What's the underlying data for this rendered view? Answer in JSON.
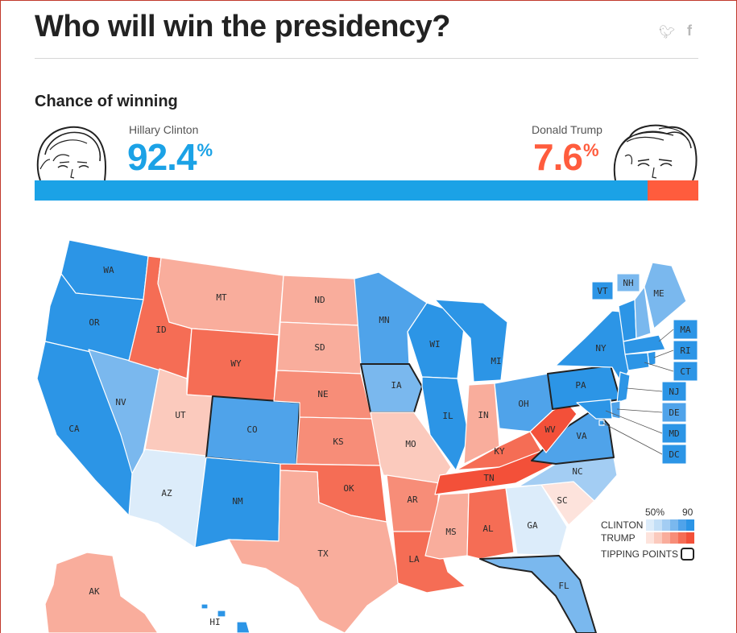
{
  "header": {
    "title": "Who will win the presidency?"
  },
  "share": {
    "twitter_icon": "twitter-icon",
    "facebook_icon": "facebook-icon"
  },
  "chance": {
    "heading": "Chance of winning",
    "clinton": {
      "name": "Hillary Clinton",
      "value": "92.4",
      "unit": "%",
      "color": "#1ba2e6"
    },
    "trump": {
      "name": "Donald Trump",
      "value": "7.6",
      "unit": "%",
      "color": "#ff5c3d"
    }
  },
  "chart_data": {
    "type": "bar",
    "categories": [
      "Hillary Clinton",
      "Donald Trump"
    ],
    "values": [
      92.4,
      7.6
    ],
    "unit": "%"
  },
  "legend": {
    "scale_low": "50%",
    "scale_high": "90",
    "clinton_label": "CLINTON",
    "trump_label": "TRUMP",
    "tipping_label": "TIPPING POINTS",
    "clinton_colors": [
      "#dcecfa",
      "#c3dff7",
      "#a3cdf3",
      "#7ab8ee",
      "#4fa3ea",
      "#2c95e6"
    ],
    "trump_colors": [
      "#fde3dc",
      "#fbcabd",
      "#f9ad9c",
      "#f78d78",
      "#f56d55",
      "#f35039"
    ]
  },
  "map": {
    "states": [
      "WA",
      "OR",
      "CA",
      "NV",
      "ID",
      "MT",
      "WY",
      "UT",
      "AZ",
      "CO",
      "NM",
      "ND",
      "SD",
      "NE",
      "KS",
      "OK",
      "TX",
      "MN",
      "IA",
      "MO",
      "AR",
      "LA",
      "WI",
      "IL",
      "MI",
      "IN",
      "OH",
      "KY",
      "TN",
      "MS",
      "AL",
      "GA",
      "FL",
      "SC",
      "NC",
      "VA",
      "WV",
      "PA",
      "NY",
      "VT",
      "NH",
      "ME",
      "MA",
      "RI",
      "CT",
      "NJ",
      "DE",
      "MD",
      "DC",
      "AK",
      "HI"
    ]
  }
}
